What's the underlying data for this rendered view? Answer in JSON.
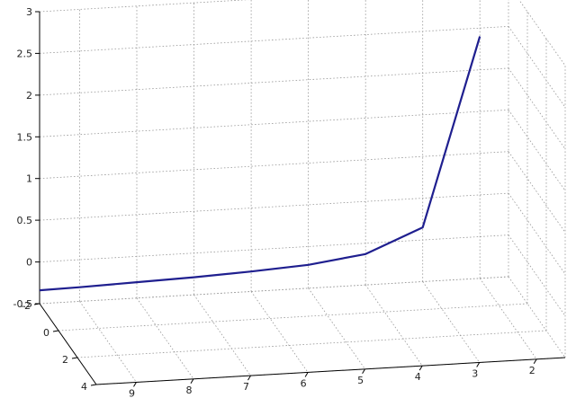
{
  "chart_data": {
    "type": "line",
    "view": "3d",
    "title": "",
    "xlabel": "",
    "ylabel": "",
    "zlabel": "",
    "grid": true,
    "x_axis": {
      "ticks": [
        9,
        8,
        7,
        6,
        5,
        4,
        3,
        2
      ],
      "range": [
        1.5,
        9.7
      ]
    },
    "y_axis": {
      "ticks": [
        -2,
        0,
        2,
        4
      ],
      "range": [
        -2,
        4
      ]
    },
    "z_axis": {
      "ticks": [
        "-0.5",
        "0",
        "0.5",
        "1",
        "1.5",
        "2",
        "2.5",
        "3"
      ],
      "range": [
        -0.5,
        3
      ]
    },
    "series": [
      {
        "color": "#1f1f8f",
        "x": [
          9.7,
          9,
          8,
          7,
          6,
          5,
          4,
          3,
          2
        ],
        "y": [
          -2,
          -2,
          -2,
          -2,
          -2,
          -2,
          -2,
          -2,
          -2
        ],
        "z": [
          -0.34,
          -0.33,
          -0.31,
          -0.29,
          -0.26,
          -0.22,
          -0.13,
          0.15,
          2.4
        ]
      }
    ]
  }
}
